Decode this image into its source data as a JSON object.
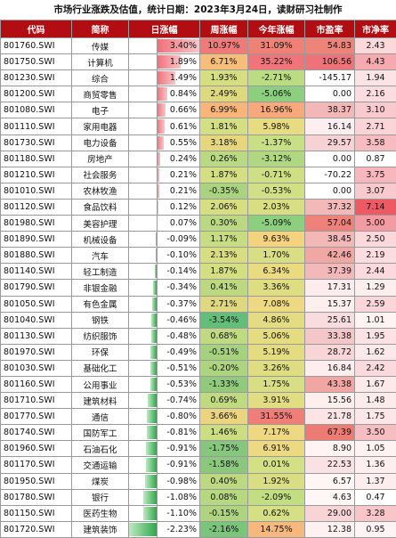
{
  "title": "市场行业涨跌及估值，统计日期：2023年3月24日，读财研习社制作",
  "headers": [
    "代码",
    "简称",
    "日涨幅",
    "周涨幅",
    "今年涨幅",
    "市盈率",
    "市净率"
  ],
  "rows": [
    {
      "code": "801760.SWI",
      "name": "传媒",
      "day": "3.40%",
      "day_v": 3.4,
      "week": "10.97%",
      "week_c": "#f07a79",
      "ytd": "31.09%",
      "ytd_c": "#f08177",
      "pe": "54.83",
      "pe_c": "#ee8379",
      "pb": "2.43",
      "pb_c": "#fbd9db"
    },
    {
      "code": "801750.SWI",
      "name": "计算机",
      "day": "1.89%",
      "day_v": 1.89,
      "week": "6.71%",
      "week_c": "#f7bd7a",
      "ytd": "35.22%",
      "ytd_c": "#ef757a",
      "pe": "106.56",
      "pe_c": "#ee7379",
      "pb": "4.43",
      "pb_c": "#f6a9ae"
    },
    {
      "code": "801230.SWI",
      "name": "综合",
      "day": "1.49%",
      "day_v": 1.49,
      "week": "1.93%",
      "week_c": "#d5df82",
      "ytd": "-2.71%",
      "ytd_c": "#bcdc82",
      "pe": "-145.17",
      "pe_c": "#ffffff",
      "pb": "1.94",
      "pb_c": "#fce3e5"
    },
    {
      "code": "801200.SWI",
      "name": "商贸零售",
      "day": "0.84%",
      "day_v": 0.84,
      "week": "2.49%",
      "week_c": "#ddd97f",
      "ytd": "-5.06%",
      "ytd_c": "#8ccf7f",
      "pe": "0.00",
      "pe_c": "#ffffff",
      "pb": "2.16",
      "pb_c": "#fbdde0"
    },
    {
      "code": "801080.SWI",
      "name": "电子",
      "day": "0.66%",
      "day_v": 0.66,
      "week": "6.99%",
      "week_c": "#f8b479",
      "ytd": "16.96%",
      "ytd_c": "#f7a97b",
      "pe": "38.37",
      "pe_c": "#f3b7b7",
      "pb": "3.10",
      "pb_c": "#f8c9cd"
    },
    {
      "code": "801110.SWI",
      "name": "家用电器",
      "day": "0.61%",
      "day_v": 0.61,
      "week": "1.81%",
      "week_c": "#d3df82",
      "ytd": "5.98%",
      "ytd_c": "#e8dc82",
      "pe": "16.14",
      "pe_c": "#fdeef0",
      "pb": "2.71",
      "pb_c": "#fad4d7"
    },
    {
      "code": "801730.SWI",
      "name": "电力设备",
      "day": "0.55%",
      "day_v": 0.55,
      "week": "3.18%",
      "week_c": "#e6d77f",
      "ytd": "-1.37%",
      "ytd_c": "#c8df84",
      "pe": "29.57",
      "pe_c": "#f7d2d4",
      "pb": "3.58",
      "pb_c": "#f7bcc1"
    },
    {
      "code": "801180.SWI",
      "name": "房地产",
      "day": "0.24%",
      "day_v": 0.24,
      "week": "0.26%",
      "week_c": "#b9d982",
      "ytd": "-3.12%",
      "ytd_c": "#b0d781",
      "pe": "0.00",
      "pe_c": "#ffffff",
      "pb": "0.87",
      "pb_c": "#ffffff"
    },
    {
      "code": "801210.SWI",
      "name": "社会服务",
      "day": "0.21%",
      "day_v": 0.21,
      "week": "1.87%",
      "week_c": "#d4df82",
      "ytd": "-0.71%",
      "ytd_c": "#cfe084",
      "pe": "-70.22",
      "pe_c": "#ffffff",
      "pb": "3.75",
      "pb_c": "#f7b7bc"
    },
    {
      "code": "801010.SWI",
      "name": "农林牧渔",
      "day": "0.21%",
      "day_v": 0.21,
      "week": "-0.35%",
      "week_c": "#aad37f",
      "ytd": "-0.53%",
      "ytd_c": "#d1e084",
      "pe": "0.00",
      "pe_c": "#ffffff",
      "pb": "3.07",
      "pb_c": "#f9cacd"
    },
    {
      "code": "801120.SWI",
      "name": "食品饮料",
      "day": "0.12%",
      "day_v": 0.12,
      "week": "2.06%",
      "week_c": "#d7de81",
      "ytd": "2.03%",
      "ytd_c": "#dade83",
      "pe": "37.32",
      "pe_c": "#f3b9b9",
      "pb": "7.14",
      "pb_c": "#ee5a64"
    },
    {
      "code": "801980.SWI",
      "name": "美容护理",
      "day": "0.07%",
      "day_v": 0.07,
      "week": "0.30%",
      "week_c": "#bad982",
      "ytd": "-5.09%",
      "ytd_c": "#8bcf7f",
      "pe": "57.04",
      "pe_c": "#ee8179",
      "pb": "5.00",
      "pb_c": "#f49aa1"
    },
    {
      "code": "801890.SWI",
      "name": "机械设备",
      "day": "-0.09%",
      "day_v": -0.09,
      "week": "1.17%",
      "week_c": "#c8dd82",
      "ytd": "9.63%",
      "ytd_c": "#f5d27e",
      "pe": "38.45",
      "pe_c": "#f3b7b7",
      "pb": "2.50",
      "pb_c": "#fbd8db"
    },
    {
      "code": "801880.SWI",
      "name": "汽车",
      "day": "-0.10%",
      "day_v": -0.1,
      "week": "2.13%",
      "week_c": "#d8dd81",
      "ytd": "1.70%",
      "ytd_c": "#d8de83",
      "pe": "42.46",
      "pe_c": "#f1a8a4",
      "pb": "2.19",
      "pb_c": "#fbdcdf"
    },
    {
      "code": "801140.SWI",
      "name": "轻工制造",
      "day": "-0.14%",
      "day_v": -0.14,
      "week": "1.87%",
      "week_c": "#d4df82",
      "ytd": "6.34%",
      "ytd_c": "#eadb81",
      "pe": "37.39",
      "pe_c": "#f3b8b9",
      "pb": "2.44",
      "pb_c": "#fbd9dc"
    },
    {
      "code": "801790.SWI",
      "name": "非银金融",
      "day": "-0.34%",
      "day_v": -0.34,
      "week": "0.41%",
      "week_c": "#bcd981",
      "ytd": "3.36%",
      "ytd_c": "#dfdd82",
      "pe": "17.31",
      "pe_c": "#fdecee",
      "pb": "1.29",
      "pb_c": "#feefef"
    },
    {
      "code": "801050.SWI",
      "name": "有色金属",
      "day": "-0.37%",
      "day_v": -0.37,
      "week": "2.71%",
      "week_c": "#e0d880",
      "ytd": "7.08%",
      "ytd_c": "#eed982",
      "pe": "15.37",
      "pe_c": "#feefef",
      "pb": "2.59",
      "pb_c": "#fad6d9"
    },
    {
      "code": "801040.SWI",
      "name": "钢铁",
      "day": "-0.46%",
      "day_v": -0.46,
      "week": "-3.54%",
      "week_c": "#63be7b",
      "ytd": "4.86%",
      "ytd_c": "#e4dc82",
      "pe": "25.61",
      "pe_c": "#f9dcde",
      "pb": "1.01",
      "pb_c": "#fff3f4"
    },
    {
      "code": "801130.SWI",
      "name": "纺织服饰",
      "day": "-0.48%",
      "day_v": -0.48,
      "week": "0.68%",
      "week_c": "#c0da82",
      "ytd": "5.06%",
      "ytd_c": "#e5dc82",
      "pe": "33.38",
      "pe_c": "#f5c6c7",
      "pb": "1.95",
      "pb_c": "#fce2e4"
    },
    {
      "code": "801970.SWI",
      "name": "环保",
      "day": "-0.49%",
      "day_v": -0.49,
      "week": "-0.51%",
      "week_c": "#a6d27f",
      "ytd": "5.19%",
      "ytd_c": "#e5dc82",
      "pe": "28.72",
      "pe_c": "#f8d5d7",
      "pb": "1.62",
      "pb_c": "#fde9eb"
    },
    {
      "code": "801030.SWI",
      "name": "基础化工",
      "day": "-0.51%",
      "day_v": -0.51,
      "week": "-0.20%",
      "week_c": "#add47f",
      "ytd": "3.26%",
      "ytd_c": "#dfdd82",
      "pe": "16.84",
      "pe_c": "#fdedee",
      "pb": "2.42",
      "pb_c": "#fbd9dc"
    },
    {
      "code": "801160.SWI",
      "name": "公用事业",
      "day": "-0.53%",
      "day_v": -0.53,
      "week": "-1.33%",
      "week_c": "#91c97d",
      "ytd": "1.75%",
      "ytd_c": "#d8de83",
      "pe": "43.38",
      "pe_c": "#f1a6a3",
      "pb": "1.67",
      "pb_c": "#fde8ea"
    },
    {
      "code": "801710.SWI",
      "name": "建筑材料",
      "day": "-0.74%",
      "day_v": -0.74,
      "week": "0.69%",
      "week_c": "#c0da82",
      "ytd": "3.91%",
      "ytd_c": "#e1dd82",
      "pe": "15.56",
      "pe_c": "#feefef",
      "pb": "1.48",
      "pb_c": "#feebec"
    },
    {
      "code": "801770.SWI",
      "name": "通信",
      "day": "-0.80%",
      "day_v": -0.8,
      "week": "3.66%",
      "week_c": "#ebd47f",
      "ytd": "31.55%",
      "ytd_c": "#f07e78",
      "pe": "21.78",
      "pe_c": "#fbe4e5",
      "pb": "1.75",
      "pb_c": "#fde6e8"
    },
    {
      "code": "801740.SWI",
      "name": "国防军工",
      "day": "-0.81%",
      "day_v": -0.81,
      "week": "1.46%",
      "week_c": "#cddd82",
      "ytd": "7.17%",
      "ytd_c": "#eed982",
      "pe": "67.39",
      "pe_c": "#ec7b74",
      "pb": "3.50",
      "pb_c": "#f7bec2"
    },
    {
      "code": "801960.SWI",
      "name": "石油石化",
      "day": "-0.91%",
      "day_v": -0.91,
      "week": "-1.75%",
      "week_c": "#86c67d",
      "ytd": "6.91%",
      "ytd_c": "#edd982",
      "pe": "8.90",
      "pe_c": "#fff3f4",
      "pb": "1.05",
      "pb_c": "#fff2f3"
    },
    {
      "code": "801170.SWI",
      "name": "交通运输",
      "day": "-0.91%",
      "day_v": -0.91,
      "week": "-1.58%",
      "week_c": "#8bc77d",
      "ytd": "0.01%",
      "ytd_c": "#d3e084",
      "pe": "22.53",
      "pe_c": "#fae1e3",
      "pb": "1.36",
      "pb_c": "#feeeef"
    },
    {
      "code": "801950.SWI",
      "name": "煤炭",
      "day": "-0.98%",
      "day_v": -0.98,
      "week": "0.40%",
      "week_c": "#bcd981",
      "ytd": "1.92%",
      "ytd_c": "#d9de83",
      "pe": "6.57",
      "pe_c": "#fff5f5",
      "pb": "1.37",
      "pb_c": "#feedef"
    },
    {
      "code": "801780.SWI",
      "name": "银行",
      "day": "-1.08%",
      "day_v": -1.08,
      "week": "0.08%",
      "week_c": "#b6d881",
      "ytd": "-2.09%",
      "ytd_c": "#c2de83",
      "pe": "4.63",
      "pe_c": "#fff6f6",
      "pb": "0.47",
      "pb_c": "#ffffff"
    },
    {
      "code": "801150.SWI",
      "name": "医药生物",
      "day": "-1.10%",
      "day_v": -1.1,
      "week": "-0.15%",
      "week_c": "#aed47f",
      "ytd": "0.62%",
      "ytd_c": "#d5df83",
      "pe": "29.00",
      "pe_c": "#f8d4d6",
      "pb": "3.28",
      "pb_c": "#f8c5c9"
    },
    {
      "code": "801720.SWI",
      "name": "建筑装饰",
      "day": "-2.23%",
      "day_v": -2.23,
      "week": "-2.16%",
      "week_c": "#7bc47c",
      "ytd": "14.75%",
      "ytd_c": "#f7b87d",
      "pe": "12.38",
      "pe_c": "#fff1f2",
      "pb": "0.95",
      "pb_c": "#fff4f5"
    }
  ],
  "day_scale": {
    "min": -2.23,
    "max": 3.4
  }
}
